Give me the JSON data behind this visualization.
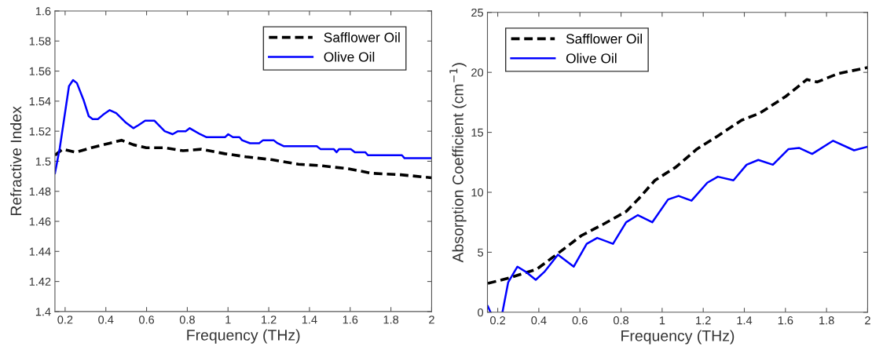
{
  "chart_data": [
    {
      "type": "line",
      "xlabel": "Frequency (THz)",
      "ylabel": "Refractive Index",
      "xlim": [
        0.15,
        2
      ],
      "ylim": [
        1.4,
        1.6
      ],
      "xticks": [
        0.2,
        0.4,
        0.6,
        0.8,
        1,
        1.2,
        1.4,
        1.6,
        1.8,
        2
      ],
      "yticks": [
        1.4,
        1.42,
        1.44,
        1.46,
        1.48,
        1.5,
        1.52,
        1.54,
        1.56,
        1.58,
        1.6
      ],
      "grid": false,
      "legend": "top right",
      "marker": "none",
      "series": [
        {
          "name": "Safflower Oil",
          "color": "#000000",
          "line_style": "dashed",
          "x": [
            0.15,
            0.187,
            0.252,
            0.329,
            0.419,
            0.477,
            0.535,
            0.599,
            0.689,
            0.779,
            0.869,
            0.985,
            1.088,
            1.217,
            1.346,
            1.462,
            1.591,
            1.706,
            1.848,
            2.0
          ],
          "values": [
            1.504,
            1.508,
            1.506,
            1.509,
            1.512,
            1.514,
            1.511,
            1.509,
            1.509,
            1.507,
            1.508,
            1.505,
            1.503,
            1.501,
            1.498,
            1.497,
            1.495,
            1.492,
            1.491,
            1.489
          ]
        },
        {
          "name": "Olive Oil",
          "color": "#0000ff",
          "line_style": "solid",
          "x": [
            0.15,
            0.174,
            0.219,
            0.239,
            0.258,
            0.29,
            0.316,
            0.335,
            0.361,
            0.387,
            0.419,
            0.451,
            0.496,
            0.535,
            0.56,
            0.593,
            0.638,
            0.689,
            0.728,
            0.754,
            0.792,
            0.812,
            0.837,
            0.863,
            0.895,
            0.985,
            1.001,
            1.024,
            1.056,
            1.069,
            1.108,
            1.153,
            1.172,
            1.224,
            1.243,
            1.275,
            1.436,
            1.455,
            1.52,
            1.533,
            1.545,
            1.603,
            1.623,
            1.674,
            1.687,
            1.854,
            1.867,
            2.0
          ],
          "values": [
            1.492,
            1.509,
            1.55,
            1.554,
            1.552,
            1.541,
            1.53,
            1.528,
            1.528,
            1.531,
            1.534,
            1.532,
            1.526,
            1.522,
            1.524,
            1.527,
            1.527,
            1.52,
            1.518,
            1.52,
            1.52,
            1.522,
            1.52,
            1.518,
            1.516,
            1.516,
            1.518,
            1.516,
            1.516,
            1.514,
            1.512,
            1.512,
            1.514,
            1.514,
            1.512,
            1.51,
            1.51,
            1.508,
            1.508,
            1.506,
            1.508,
            1.508,
            1.506,
            1.506,
            1.504,
            1.504,
            1.502,
            1.502
          ]
        }
      ]
    },
    {
      "type": "line",
      "xlabel": "Frequency (THz)",
      "ylabel": "Absorption Coefficient (cm$^{−1}$)",
      "xlim": [
        0.15,
        2
      ],
      "ylim": [
        0,
        25
      ],
      "xticks": [
        0.2,
        0.4,
        0.6,
        0.8,
        1,
        1.2,
        1.4,
        1.6,
        1.8,
        2
      ],
      "yticks": [
        0,
        5,
        10,
        15,
        20,
        25
      ],
      "grid": false,
      "legend": "top left",
      "marker": "none",
      "series": [
        {
          "name": "Safflower Oil",
          "color": "#000000",
          "line_style": "dashed",
          "x": [
            0.152,
            0.264,
            0.391,
            0.493,
            0.608,
            0.71,
            0.825,
            0.888,
            0.965,
            1.067,
            1.169,
            1.271,
            1.386,
            1.475,
            1.602,
            1.704,
            1.755,
            1.857,
            2.0
          ],
          "values": [
            2.4,
            2.9,
            3.6,
            4.9,
            6.4,
            7.3,
            8.4,
            9.5,
            11.0,
            12.1,
            13.6,
            14.7,
            16.0,
            16.6,
            18.0,
            19.4,
            19.2,
            19.9,
            20.4
          ]
        },
        {
          "name": "Olive Oil",
          "color": "#0000ff",
          "line_style": "solid",
          "x": [
            0.152,
            0.165,
            0.19,
            0.223,
            0.251,
            0.296,
            0.334,
            0.385,
            0.429,
            0.493,
            0.57,
            0.633,
            0.684,
            0.761,
            0.825,
            0.882,
            0.952,
            1.029,
            1.08,
            1.143,
            1.22,
            1.271,
            1.347,
            1.411,
            1.468,
            1.539,
            1.615,
            1.666,
            1.73,
            1.832,
            1.934,
            2.0
          ],
          "values": [
            0.5,
            0,
            null,
            0,
            2.5,
            3.8,
            3.4,
            2.7,
            3.4,
            4.8,
            3.8,
            5.7,
            6.2,
            5.7,
            7.5,
            8.1,
            7.5,
            9.4,
            9.7,
            9.3,
            10.8,
            11.3,
            11.0,
            12.3,
            12.7,
            12.3,
            13.6,
            13.7,
            13.2,
            14.3,
            13.5,
            13.8
          ]
        }
      ]
    }
  ]
}
